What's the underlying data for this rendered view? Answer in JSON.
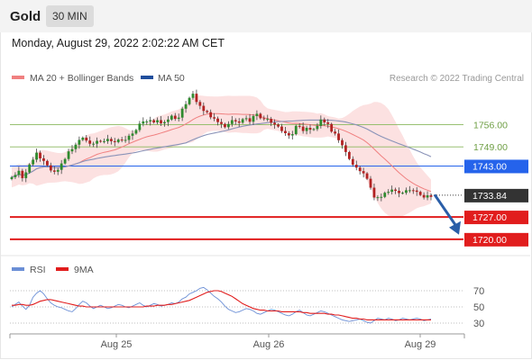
{
  "header": {
    "instrument": "Gold",
    "timeframe": "30 MIN",
    "timestamp": "Monday, August 29, 2022 2:02:22 AM CET"
  },
  "legend": {
    "items": [
      {
        "label": "MA 20 + Bollinger Bands",
        "color": "#f08080"
      },
      {
        "label": "MA 50",
        "color": "#1f4e9c"
      }
    ],
    "copyright": "Research © 2022 Trading Central"
  },
  "chart_data": [
    {
      "type": "candlestick",
      "title": "",
      "ylim": [
        1716,
        1768
      ],
      "x_labels": [
        "Aug 25",
        "Aug 26",
        "Aug 29"
      ],
      "close_sketch": [
        1739.5,
        1740.2,
        1741.5,
        1739.2,
        1741.0,
        1743.5,
        1745.0,
        1747.2,
        1745.4,
        1744.6,
        1743.2,
        1741.6,
        1741.2,
        1741.8,
        1743.8,
        1745.2,
        1747.6,
        1748.3,
        1749.7,
        1751.2,
        1751.9,
        1751.0,
        1750.0,
        1750.0,
        1750.9,
        1750.7,
        1750.8,
        1751.5,
        1750.8,
        1750.5,
        1751.3,
        1751.1,
        1751.2,
        1752.5,
        1753.2,
        1754.3,
        1756.3,
        1757.0,
        1757.0,
        1757.4,
        1756.7,
        1757.4,
        1756.4,
        1756.8,
        1757.6,
        1758.8,
        1757.8,
        1758.2,
        1761.0,
        1762.4,
        1764.4,
        1765.7,
        1763.1,
        1761.9,
        1760.3,
        1759.9,
        1758.3,
        1757.9,
        1756.8,
        1756.2,
        1755.2,
        1756.2,
        1757.4,
        1757.0,
        1756.6,
        1757.7,
        1758.0,
        1756.9,
        1758.7,
        1759.4,
        1758.0,
        1757.8,
        1757.8,
        1756.6,
        1756.0,
        1755.4,
        1754.0,
        1753.3,
        1752.6,
        1753.0,
        1755.6,
        1755.4,
        1754.0,
        1755.0,
        1754.4,
        1754.6,
        1755.6,
        1757.6,
        1756.7,
        1756.2,
        1753.8,
        1753.2,
        1751.1,
        1749.5,
        1747.4,
        1745.2,
        1743.4,
        1742.5,
        1741.4,
        1740.7,
        1739.0,
        1736.2,
        1733.1,
        1733.2,
        1733.3,
        1734.6,
        1734.9,
        1735.6,
        1735.2,
        1734.5,
        1734.6,
        1735.4,
        1735.4,
        1735.3,
        1734.9,
        1733.9,
        1733.1,
        1733.8,
        1733.3
      ],
      "horizontal_levels": [
        {
          "value": 1756.0,
          "label": "1756.00",
          "color": "#8ab85e",
          "role": "resistance"
        },
        {
          "value": 1749.0,
          "label": "1749.00",
          "color": "#8ab85e",
          "role": "resistance"
        },
        {
          "value": 1743.0,
          "label": "1743.00",
          "color": "#2563eb",
          "role": "pivot"
        },
        {
          "value": 1733.84,
          "label": "1733.84",
          "color": "#333333",
          "role": "last price"
        },
        {
          "value": 1727.0,
          "label": "1727.00",
          "color": "#e11d1d",
          "role": "support"
        },
        {
          "value": 1720.0,
          "label": "1720.00",
          "color": "#e11d1d",
          "role": "support"
        }
      ],
      "forecast_arrow": {
        "from": 1734.0,
        "to": 1722.0,
        "direction": "down",
        "color": "#2a5ea8"
      }
    },
    {
      "type": "line",
      "title": "",
      "ylim": [
        20,
        80
      ],
      "y_ticks": [
        70,
        50,
        30
      ],
      "series": [
        {
          "name": "RSI",
          "color": "#6b8fd6",
          "values": [
            50,
            53,
            56,
            51,
            47,
            52,
            62,
            67,
            70,
            66,
            60,
            55,
            52,
            50,
            49,
            47,
            45,
            44,
            48,
            53,
            57,
            55,
            51,
            48,
            50,
            52,
            50,
            48,
            49,
            51,
            53,
            52,
            50,
            49,
            51,
            53,
            55,
            52,
            50,
            52,
            54,
            53,
            51,
            52,
            53,
            55,
            54,
            56,
            60,
            62,
            66,
            68,
            70,
            73,
            74,
            71,
            67,
            63,
            60,
            56,
            51,
            47,
            45,
            43,
            44,
            46,
            48,
            47,
            45,
            42,
            41,
            43,
            45,
            47,
            46,
            44,
            42,
            40,
            39,
            41,
            44,
            46,
            43,
            40,
            39,
            41,
            43,
            45,
            44,
            42,
            40,
            38,
            36,
            34,
            33,
            32,
            33,
            34,
            35,
            33,
            31,
            30,
            33,
            36,
            35,
            34,
            36,
            35,
            33,
            34,
            36,
            35,
            34,
            35,
            36,
            35,
            33,
            34,
            35
          ]
        },
        {
          "name": "9MA",
          "color": "#e11d1d",
          "values": [
            52,
            52,
            53,
            53,
            52,
            52,
            53,
            55,
            57,
            58,
            59,
            59,
            58,
            57,
            56,
            55,
            54,
            53,
            52,
            51,
            51,
            50,
            50,
            50,
            50,
            50,
            50,
            50,
            50,
            50,
            50,
            50,
            50,
            50,
            50,
            50,
            50,
            50,
            51,
            51,
            51,
            52,
            52,
            52,
            53,
            53,
            54,
            55,
            56,
            57,
            58,
            60,
            62,
            64,
            66,
            68,
            69,
            70,
            70,
            69,
            67,
            65,
            63,
            60,
            57,
            54,
            52,
            50,
            48,
            47,
            46,
            46,
            45,
            45,
            45,
            45,
            44,
            44,
            44,
            44,
            44,
            44,
            43,
            43,
            42,
            42,
            42,
            42,
            42,
            41,
            41,
            40,
            40,
            39,
            38,
            37,
            36,
            36,
            35,
            35,
            34,
            34,
            34,
            34,
            34,
            34,
            34,
            34,
            34,
            34,
            34,
            34,
            34,
            34,
            34,
            34,
            34,
            34,
            34
          ]
        }
      ]
    }
  ]
}
